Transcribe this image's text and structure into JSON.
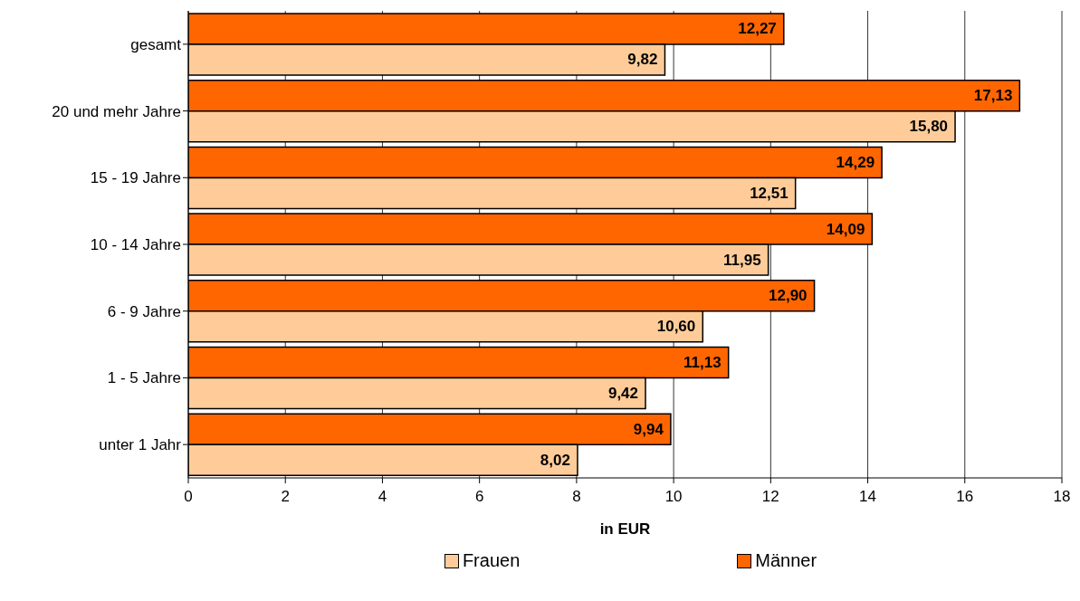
{
  "chart_data": {
    "type": "bar",
    "orientation": "horizontal",
    "xlabel": "in EUR",
    "categories": [
      "gesamt",
      "20 und mehr Jahre",
      "15 - 19 Jahre",
      "10 - 14 Jahre",
      "6 - 9 Jahre",
      "1 - 5 Jahre",
      "unter 1 Jahr"
    ],
    "series": [
      {
        "name": "Frauen",
        "color": "#ffcc99",
        "values": [
          9.82,
          15.8,
          12.51,
          11.95,
          10.6,
          9.42,
          8.02
        ],
        "value_labels": [
          "9,82",
          "15,80",
          "12,51",
          "11,95",
          "10,60",
          "9,42",
          "8,02"
        ]
      },
      {
        "name": "Männer",
        "color": "#ff6600",
        "values": [
          12.27,
          17.13,
          14.29,
          14.09,
          12.9,
          11.13,
          9.94
        ],
        "value_labels": [
          "12,27",
          "17,13",
          "14,29",
          "14,09",
          "12,90",
          "11,13",
          "9,94"
        ]
      }
    ],
    "xlim": [
      0,
      18
    ],
    "xticks": [
      0,
      2,
      4,
      6,
      8,
      10,
      12,
      14,
      16,
      18
    ],
    "grid": "x",
    "legend": "bottom"
  }
}
